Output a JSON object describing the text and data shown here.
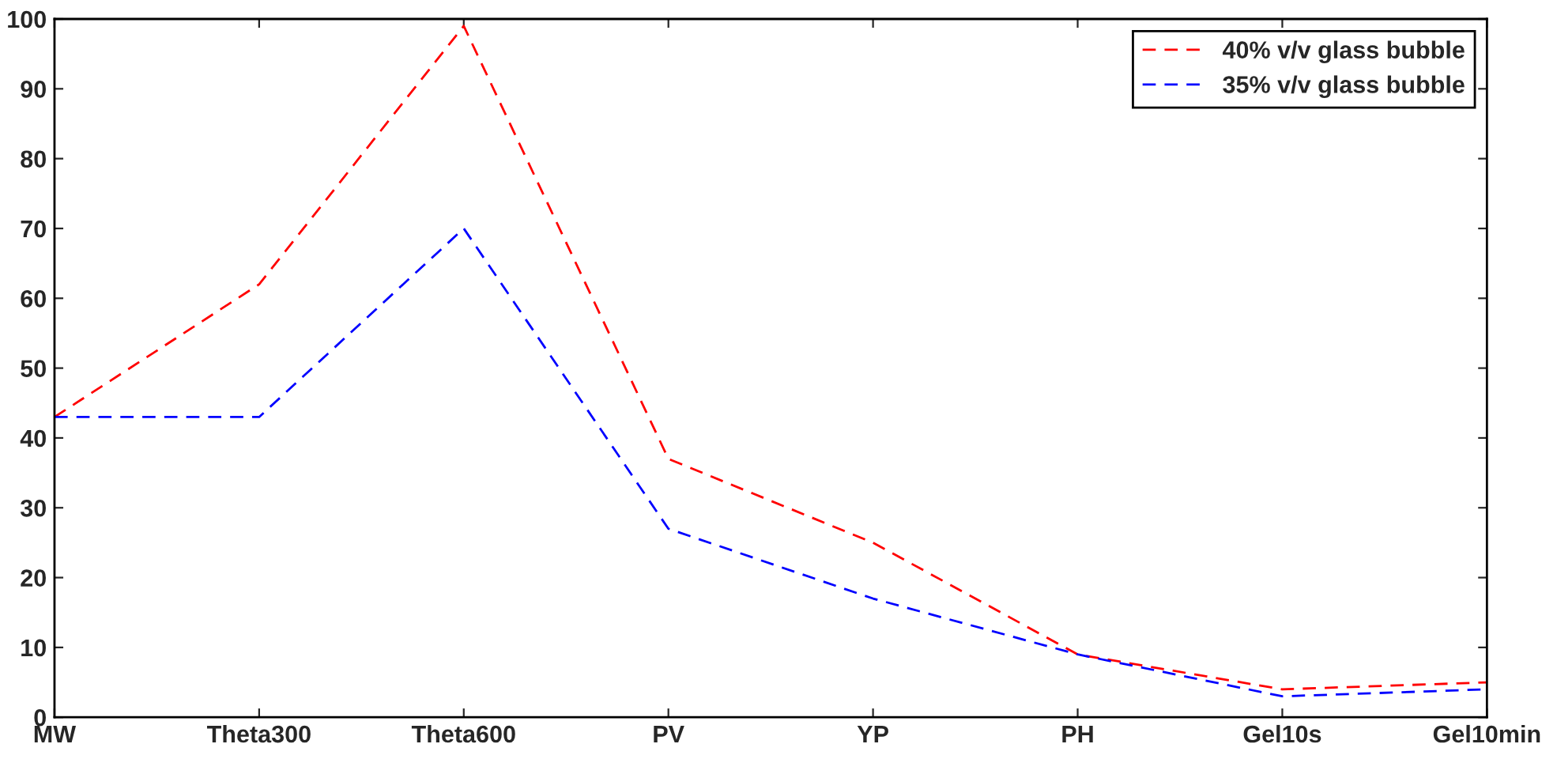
{
  "chart_data": {
    "type": "line",
    "categories": [
      "MW",
      "Theta300",
      "Theta600",
      "PV",
      "YP",
      "PH",
      "Gel10s",
      "Gel10min"
    ],
    "series": [
      {
        "name": "40% v/v glass bubble",
        "color": "#ff0000",
        "values": [
          43,
          62,
          99,
          37,
          25,
          9,
          4,
          5
        ]
      },
      {
        "name": "35% v/v glass bubble",
        "color": "#0000ff",
        "values": [
          43,
          43,
          70,
          27,
          17,
          9,
          3,
          4
        ]
      }
    ],
    "ylim": [
      0,
      100
    ],
    "yticks": [
      0,
      10,
      20,
      30,
      40,
      50,
      60,
      70,
      80,
      90,
      100
    ],
    "grid": false,
    "legend": "top right",
    "line_style": "dashed",
    "marker": "none"
  }
}
